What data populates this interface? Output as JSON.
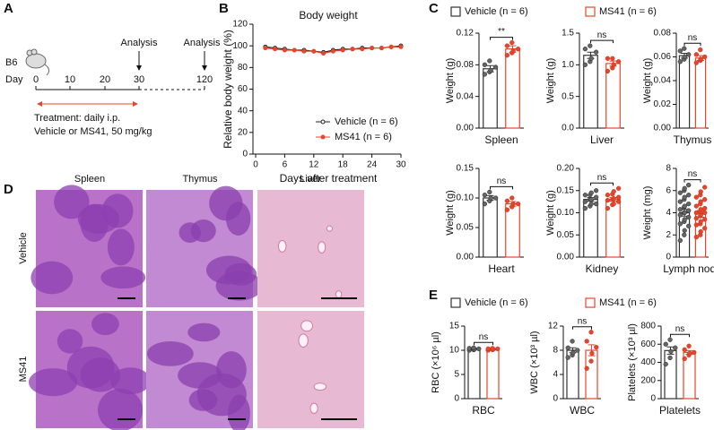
{
  "panel_labels": [
    "A",
    "B",
    "C",
    "D",
    "E"
  ],
  "panel_a": {
    "strain": "B6",
    "day_label": "Day",
    "days": [
      "0",
      "10",
      "20",
      "30",
      "120"
    ],
    "analysis": [
      "Analysis",
      "Analysis"
    ],
    "treatment": [
      "Treatment: daily i.p.",
      "Vehicle or MS41, 50 mg/kg"
    ]
  },
  "legend_c": [
    {
      "name": "Vehicle (n = 6)",
      "color": "#333333"
    },
    {
      "name": "MS41 (n = 6)",
      "color": "#e8452c"
    }
  ],
  "legend_e": [
    {
      "name": "Vehicle (n = 6)",
      "color": "#333333"
    },
    {
      "name": "MS41 (n = 6)",
      "color": "#e8452c"
    }
  ],
  "chart_data": [
    {
      "type": "line",
      "title": "Body weight",
      "xlabel": "Days after treatment",
      "ylabel": "Relative body weight (%)",
      "x": [
        2,
        4,
        6,
        8,
        10,
        12,
        14,
        16,
        18,
        20,
        22,
        24,
        26,
        28,
        30
      ],
      "series": [
        {
          "name": "Vehicle (n = 6)",
          "color": "#222222",
          "values": [
            99,
            98,
            97,
            96,
            96,
            95,
            94,
            96,
            97,
            97,
            98,
            98,
            98,
            99,
            100
          ]
        },
        {
          "name": "MS41 (n = 6)",
          "color": "#e8452c",
          "values": [
            98,
            97,
            96,
            96,
            95,
            95,
            93,
            95,
            96,
            97,
            97,
            98,
            98,
            99,
            99
          ]
        }
      ],
      "xlim": [
        0,
        30
      ],
      "xticks": [
        0,
        6,
        12,
        18,
        24,
        30
      ],
      "ylim": [
        0,
        120
      ],
      "yticks": [
        0,
        20,
        40,
        60,
        80,
        100,
        120
      ],
      "legend": "lower-right"
    },
    {
      "type": "bar",
      "xlabel": "Spleen",
      "ylabel": "Weight (g)",
      "significance": "**",
      "colors": [
        "#333333",
        "#e8452c"
      ],
      "values": [
        0.075,
        0.1
      ],
      "errors": [
        0.004,
        0.004
      ],
      "points": [
        [
          0.068,
          0.071,
          0.073,
          0.077,
          0.08,
          0.085
        ],
        [
          0.092,
          0.095,
          0.098,
          0.1,
          0.104,
          0.108
        ]
      ],
      "ylim": [
        0,
        0.12
      ],
      "yticks": [
        {
          "value": 0,
          "label": "0.00"
        },
        0.04,
        0.08,
        0.12
      ]
    },
    {
      "type": "bar",
      "xlabel": "Liver",
      "ylabel": "Weight (g)",
      "significance": "ns",
      "colors": [
        "#333333",
        "#e8452c"
      ],
      "values": [
        1.15,
        1.02
      ],
      "errors": [
        0.05,
        0.04
      ],
      "points": [
        [
          1.0,
          1.05,
          1.1,
          1.2,
          1.25,
          1.3
        ],
        [
          0.9,
          0.95,
          1.0,
          1.05,
          1.1,
          1.1
        ]
      ],
      "ylim": [
        0,
        1.5
      ],
      "yticks": [
        {
          "value": 0,
          "label": "0.0"
        },
        0.5,
        {
          "value": 1,
          "label": "1.0"
        },
        1.5
      ]
    },
    {
      "type": "bar",
      "xlabel": "Thymus",
      "ylabel": "Weight (g)",
      "significance": "ns",
      "colors": [
        "#333333",
        "#e8452c"
      ],
      "values": [
        0.061,
        0.059
      ],
      "errors": [
        0.002,
        0.002
      ],
      "points": [
        [
          0.056,
          0.058,
          0.06,
          0.062,
          0.065,
          0.067
        ],
        [
          0.055,
          0.057,
          0.058,
          0.06,
          0.062,
          0.066
        ]
      ],
      "ylim": [
        0,
        0.08
      ],
      "yticks": [
        {
          "value": 0,
          "label": "0.00"
        },
        0.02,
        0.04,
        0.06,
        0.08
      ]
    },
    {
      "type": "bar",
      "xlabel": "Heart",
      "ylabel": "Weight (g)",
      "significance": "ns",
      "colors": [
        "#333333",
        "#e8452c"
      ],
      "values": [
        0.1,
        0.09
      ],
      "errors": [
        0.004,
        0.004
      ],
      "points": [
        [
          0.09,
          0.095,
          0.1,
          0.1,
          0.105,
          0.11
        ],
        [
          0.08,
          0.085,
          0.09,
          0.09,
          0.095,
          0.1
        ]
      ],
      "ylim": [
        0,
        0.15
      ],
      "yticks": [
        {
          "value": 0,
          "label": "0.00"
        },
        0.05,
        {
          "value": 0.1,
          "label": "0.10"
        },
        0.15
      ]
    },
    {
      "type": "bar",
      "xlabel": "Kidney",
      "ylabel": "Weight (g)",
      "significance": "ns",
      "colors": [
        "#333333",
        "#e8452c"
      ],
      "values": [
        0.13,
        0.13
      ],
      "errors": [
        0.004,
        0.004
      ],
      "points": [
        [
          0.11,
          0.115,
          0.12,
          0.12,
          0.125,
          0.13,
          0.13,
          0.135,
          0.14,
          0.14,
          0.145,
          0.15
        ],
        [
          0.11,
          0.118,
          0.12,
          0.125,
          0.128,
          0.13,
          0.132,
          0.135,
          0.14,
          0.142,
          0.148,
          0.155
        ]
      ],
      "ylim": [
        0,
        0.2
      ],
      "yticks": [
        {
          "value": 0,
          "label": "0.00"
        },
        0.05,
        {
          "value": 0.1,
          "label": "0.10"
        },
        0.15,
        {
          "value": 0.2,
          "label": "0.20"
        }
      ]
    },
    {
      "type": "bar",
      "xlabel": "Lymph node",
      "ylabel": "Weight (mg)",
      "significance": "ns",
      "colors": [
        "#333333",
        "#e8452c"
      ],
      "values": [
        4,
        3.9
      ],
      "errors": [
        0.3,
        0.3
      ],
      "points": [
        [
          1.5,
          2.0,
          2.4,
          2.8,
          3.0,
          3.2,
          3.4,
          3.6,
          3.8,
          4.0,
          4.0,
          4.2,
          4.3,
          4.5,
          4.6,
          4.8,
          5.0,
          5.2,
          5.4,
          5.6,
          5.8,
          6.0,
          6.2,
          6.5
        ],
        [
          1.8,
          2.0,
          2.3,
          2.6,
          2.9,
          3.0,
          3.2,
          3.4,
          3.5,
          3.7,
          3.8,
          4.0,
          4.0,
          4.1,
          4.3,
          4.4,
          4.6,
          4.8,
          5.0,
          5.2,
          5.4,
          5.6,
          5.9,
          6.3
        ]
      ],
      "ylim": [
        0,
        8
      ],
      "yticks": [
        0,
        2,
        4,
        6,
        8
      ]
    },
    {
      "type": "bar",
      "xlabel": "RBC",
      "ylabel": "RBC (×10⁶ µl)",
      "significance": "ns",
      "colors": [
        "#333333",
        "#e8452c"
      ],
      "values": [
        10.3,
        10.2
      ],
      "errors": [
        0.1,
        0.1
      ],
      "points": [
        [
          10.0,
          10.1,
          10.2,
          10.3,
          10.4,
          10.5
        ],
        [
          10.0,
          10.1,
          10.2,
          10.3,
          10.3,
          10.4
        ]
      ],
      "ylim": [
        0,
        15
      ],
      "yticks": [
        0,
        5,
        10,
        15
      ]
    },
    {
      "type": "bar",
      "xlabel": "WBC",
      "ylabel": "WBC (×10³ µl)",
      "significance": "ns",
      "colors": [
        "#333333",
        "#e8452c"
      ],
      "values": [
        8,
        8
      ],
      "errors": [
        0.4,
        0.9
      ],
      "points": [
        [
          6.8,
          7.2,
          7.6,
          8.0,
          8.4,
          9.5
        ],
        [
          5.0,
          6.2,
          7.5,
          8.5,
          9.5,
          11.0
        ]
      ],
      "ylim": [
        0,
        12
      ],
      "yticks": [
        0,
        4,
        8,
        12
      ]
    },
    {
      "type": "bar",
      "xlabel": "Platelets",
      "ylabel": "Platelets (×10³ µl)",
      "significance": "ns",
      "colors": [
        "#333333",
        "#e8452c"
      ],
      "values": [
        530,
        510
      ],
      "errors": [
        40,
        20
      ],
      "points": [
        [
          380,
          450,
          520,
          560,
          600,
          650
        ],
        [
          440,
          480,
          500,
          510,
          540,
          580
        ]
      ],
      "ylim": [
        0,
        800
      ],
      "yticks": [
        0,
        200,
        400,
        600,
        800
      ]
    }
  ],
  "panel_d": {
    "columns": [
      "Spleen",
      "Thymus",
      "Liver"
    ],
    "rows": [
      "Vehicle",
      "MS41"
    ]
  }
}
